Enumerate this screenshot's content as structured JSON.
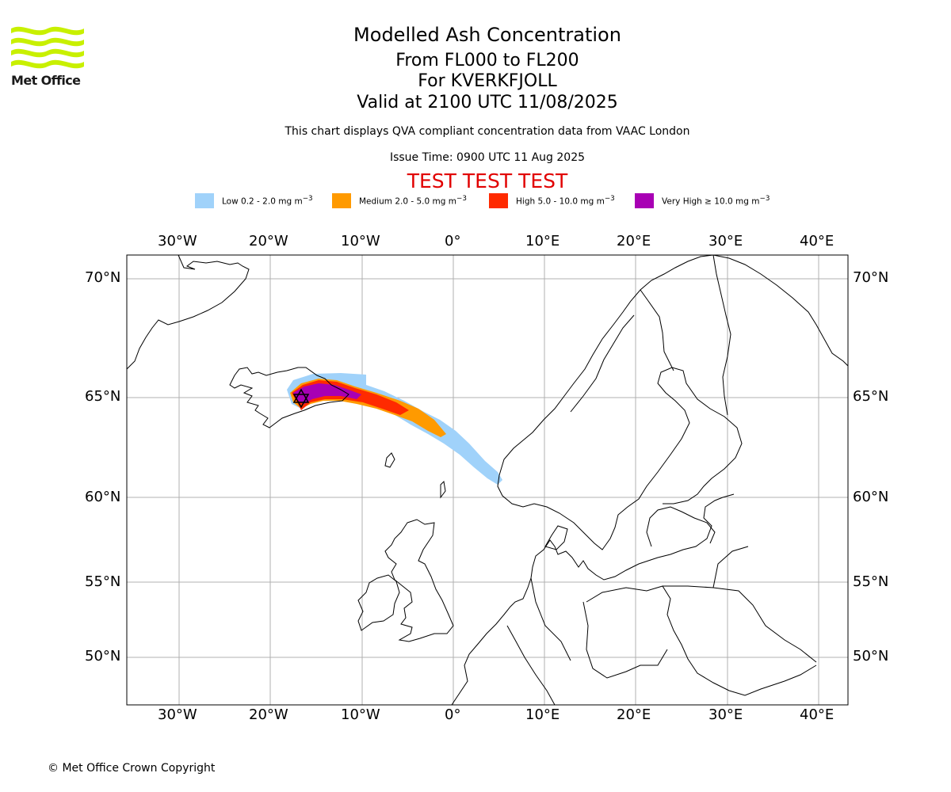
{
  "header": {
    "logo_text": "Met Office",
    "title": "Modelled Ash Concentration",
    "level_range": "From FL000 to FL200",
    "volcano": "For KVERKFJOLL",
    "valid_time": "Valid at 2100 UTC 11/08/2025",
    "description": "This chart displays QVA compliant concentration data from VAAC London",
    "issue_time": "Issue Time: 0900 UTC 11 Aug 2025",
    "test_banner": "TEST TEST TEST"
  },
  "legend": [
    {
      "label": "Low 0.2 - 2.0 mg m",
      "unit_exp": "−3",
      "color": "#a0d2fa"
    },
    {
      "label": "Medium 2.0 - 5.0 mg m",
      "unit_exp": "−3",
      "color": "#ff9a00"
    },
    {
      "label": "High 5.0 - 10.0 mg m",
      "unit_exp": "−3",
      "color": "#ff2a00"
    },
    {
      "label": "Very High  ≥  10.0 mg m",
      "unit_exp": "−3",
      "color": "#a800b4"
    }
  ],
  "map": {
    "longitude_labels": [
      "30°W",
      "20°W",
      "10°W",
      "0°",
      "10°E",
      "20°E",
      "30°E",
      "40°E"
    ],
    "latitude_labels": [
      "70°N",
      "65°N",
      "60°N",
      "55°N",
      "50°N"
    ],
    "volcano_marker": "hexagram",
    "gridline_color": "#b0b0b0"
  },
  "footer": {
    "copyright": "© Met Office Crown Copyright"
  }
}
